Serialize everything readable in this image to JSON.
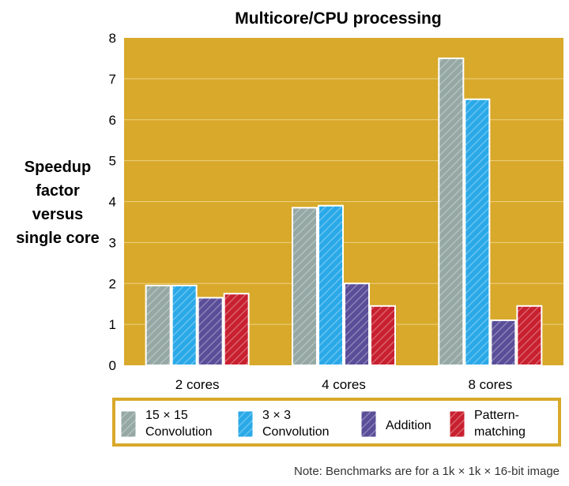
{
  "chart_data": {
    "type": "bar",
    "title": "Multicore/CPU processing",
    "ylabel": [
      "Speedup",
      "factor",
      "versus",
      "single core"
    ],
    "xlabel": "",
    "ylim": [
      0,
      8
    ],
    "yticks": [
      0,
      1,
      2,
      3,
      4,
      5,
      6,
      7,
      8
    ],
    "grid": true,
    "legend_position": "bottom",
    "categories": [
      "2 cores",
      "4 cores",
      "8 cores"
    ],
    "series": [
      {
        "name": "15 × 15 Convolution",
        "legend_lines": [
          "15 × 15",
          "Convolution"
        ],
        "color": "#95a8a4",
        "values": [
          1.95,
          3.85,
          7.5
        ]
      },
      {
        "name": "3 × 3 Convolution",
        "legend_lines": [
          "3 × 3",
          "Convolution"
        ],
        "color": "#2aa9e8",
        "values": [
          1.95,
          3.9,
          6.5
        ]
      },
      {
        "name": "Addition",
        "legend_lines": [
          "Addition"
        ],
        "color": "#5a4e99",
        "values": [
          1.65,
          2.0,
          1.1
        ]
      },
      {
        "name": "Pattern-matching",
        "legend_lines": [
          "Pattern-",
          "matching"
        ],
        "color": "#c8202f",
        "values": [
          1.75,
          1.45,
          1.45
        ]
      }
    ],
    "plot_background": "#d8a92a",
    "note": "Note: Benchmarks are for a 1k × 1k × 16-bit image"
  }
}
